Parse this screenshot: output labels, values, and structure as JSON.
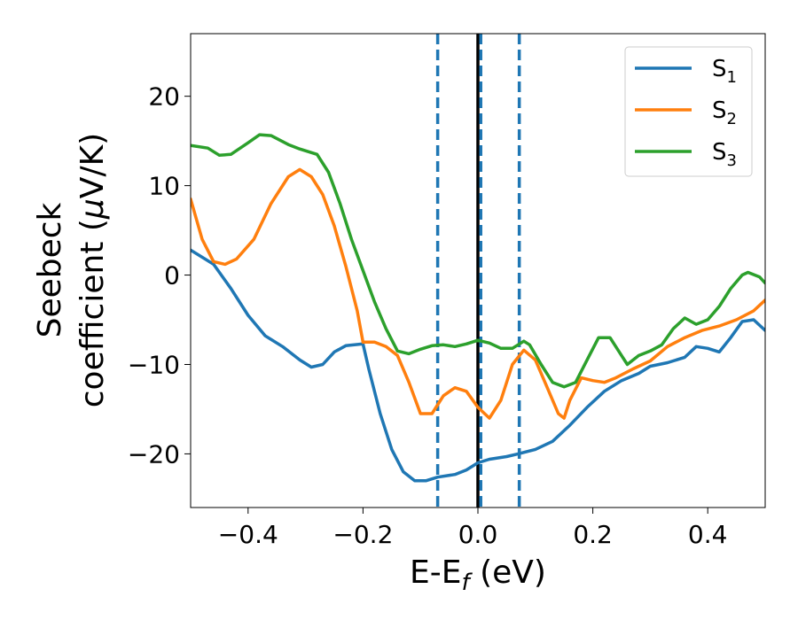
{
  "chart_data": {
    "type": "line",
    "xlabel": {
      "main": "E-E",
      "sub": "f",
      "suffix": " (eV)"
    },
    "ylabel": {
      "line1": "Seebeck",
      "line2_prefix": "coefficient  (",
      "mu": "μ",
      "line2_suffix": "V/K)"
    },
    "xlim": [
      -0.5,
      0.5
    ],
    "ylim": [
      -26,
      27
    ],
    "xticks": [
      -0.4,
      -0.2,
      0.0,
      0.2,
      0.4
    ],
    "xtick_labels": [
      "−0.4",
      "−0.2",
      "0.0",
      "0.2",
      "0.4"
    ],
    "yticks": [
      -20,
      -10,
      0,
      10,
      20
    ],
    "ytick_labels": [
      "−20",
      "−10",
      "0",
      "10",
      "20"
    ],
    "grid": false,
    "legend_position": "top-right",
    "vertical_lines": [
      {
        "x": 0.0,
        "style": "solid",
        "color": "#000000"
      },
      {
        "x": -0.07,
        "style": "dashed",
        "color": "#1f77b4"
      },
      {
        "x": 0.005,
        "style": "dashed",
        "color": "#1f77b4"
      },
      {
        "x": 0.072,
        "style": "dashed",
        "color": "#1f77b4"
      }
    ],
    "series": [
      {
        "name": "S",
        "sub": "1",
        "color": "#1f77b4",
        "points": [
          [
            -0.5,
            2.8
          ],
          [
            -0.46,
            1.2
          ],
          [
            -0.43,
            -1.5
          ],
          [
            -0.4,
            -4.5
          ],
          [
            -0.37,
            -6.8
          ],
          [
            -0.34,
            -8.0
          ],
          [
            -0.31,
            -9.5
          ],
          [
            -0.29,
            -10.3
          ],
          [
            -0.27,
            -10.0
          ],
          [
            -0.25,
            -8.6
          ],
          [
            -0.23,
            -7.9
          ],
          [
            -0.2,
            -7.7
          ],
          [
            -0.19,
            -10.5
          ],
          [
            -0.17,
            -15.5
          ],
          [
            -0.15,
            -19.5
          ],
          [
            -0.13,
            -22.0
          ],
          [
            -0.11,
            -23.0
          ],
          [
            -0.09,
            -23.0
          ],
          [
            -0.07,
            -22.6
          ],
          [
            -0.04,
            -22.3
          ],
          [
            -0.02,
            -21.8
          ],
          [
            0.0,
            -21.0
          ],
          [
            0.02,
            -20.6
          ],
          [
            0.05,
            -20.3
          ],
          [
            0.07,
            -20.0
          ],
          [
            0.1,
            -19.5
          ],
          [
            0.13,
            -18.6
          ],
          [
            0.16,
            -16.8
          ],
          [
            0.19,
            -14.8
          ],
          [
            0.22,
            -13.0
          ],
          [
            0.25,
            -11.8
          ],
          [
            0.28,
            -11.0
          ],
          [
            0.3,
            -10.2
          ],
          [
            0.33,
            -9.8
          ],
          [
            0.36,
            -9.2
          ],
          [
            0.38,
            -8.0
          ],
          [
            0.4,
            -8.2
          ],
          [
            0.42,
            -8.6
          ],
          [
            0.44,
            -7.0
          ],
          [
            0.46,
            -5.2
          ],
          [
            0.48,
            -5.0
          ],
          [
            0.5,
            -6.2
          ]
        ]
      },
      {
        "name": "S",
        "sub": "2",
        "color": "#ff7f0e",
        "points": [
          [
            -0.5,
            8.5
          ],
          [
            -0.48,
            4.0
          ],
          [
            -0.46,
            1.5
          ],
          [
            -0.44,
            1.2
          ],
          [
            -0.42,
            1.8
          ],
          [
            -0.39,
            4.0
          ],
          [
            -0.36,
            8.0
          ],
          [
            -0.33,
            11.0
          ],
          [
            -0.31,
            11.8
          ],
          [
            -0.29,
            11.0
          ],
          [
            -0.27,
            9.0
          ],
          [
            -0.25,
            5.5
          ],
          [
            -0.23,
            1.0
          ],
          [
            -0.21,
            -4.0
          ],
          [
            -0.2,
            -7.5
          ],
          [
            -0.18,
            -7.5
          ],
          [
            -0.16,
            -8.0
          ],
          [
            -0.14,
            -9.0
          ],
          [
            -0.12,
            -12.0
          ],
          [
            -0.1,
            -15.5
          ],
          [
            -0.08,
            -15.5
          ],
          [
            -0.06,
            -13.5
          ],
          [
            -0.04,
            -12.6
          ],
          [
            -0.02,
            -13.0
          ],
          [
            0.0,
            -14.8
          ],
          [
            0.02,
            -16.0
          ],
          [
            0.04,
            -14.0
          ],
          [
            0.06,
            -10.0
          ],
          [
            0.08,
            -8.4
          ],
          [
            0.1,
            -9.5
          ],
          [
            0.12,
            -12.5
          ],
          [
            0.14,
            -15.5
          ],
          [
            0.15,
            -16.0
          ],
          [
            0.16,
            -14.0
          ],
          [
            0.18,
            -11.5
          ],
          [
            0.2,
            -11.8
          ],
          [
            0.22,
            -12.0
          ],
          [
            0.24,
            -11.5
          ],
          [
            0.27,
            -10.5
          ],
          [
            0.3,
            -9.6
          ],
          [
            0.33,
            -8.0
          ],
          [
            0.36,
            -7.0
          ],
          [
            0.39,
            -6.2
          ],
          [
            0.42,
            -5.7
          ],
          [
            0.45,
            -5.0
          ],
          [
            0.48,
            -4.0
          ],
          [
            0.5,
            -2.8
          ]
        ]
      },
      {
        "name": "S",
        "sub": "3",
        "color": "#2ca02c",
        "points": [
          [
            -0.5,
            14.5
          ],
          [
            -0.47,
            14.2
          ],
          [
            -0.45,
            13.4
          ],
          [
            -0.43,
            13.5
          ],
          [
            -0.4,
            14.8
          ],
          [
            -0.38,
            15.7
          ],
          [
            -0.36,
            15.6
          ],
          [
            -0.33,
            14.6
          ],
          [
            -0.31,
            14.1
          ],
          [
            -0.28,
            13.5
          ],
          [
            -0.26,
            11.5
          ],
          [
            -0.24,
            8.0
          ],
          [
            -0.22,
            4.0
          ],
          [
            -0.2,
            0.5
          ],
          [
            -0.18,
            -3.0
          ],
          [
            -0.16,
            -6.0
          ],
          [
            -0.14,
            -8.5
          ],
          [
            -0.12,
            -8.8
          ],
          [
            -0.1,
            -8.3
          ],
          [
            -0.08,
            -7.9
          ],
          [
            -0.06,
            -7.8
          ],
          [
            -0.04,
            -8.0
          ],
          [
            -0.02,
            -7.7
          ],
          [
            0.0,
            -7.3
          ],
          [
            0.02,
            -7.6
          ],
          [
            0.04,
            -8.2
          ],
          [
            0.06,
            -8.2
          ],
          [
            0.08,
            -7.4
          ],
          [
            0.09,
            -7.8
          ],
          [
            0.11,
            -10.0
          ],
          [
            0.13,
            -12.0
          ],
          [
            0.15,
            -12.5
          ],
          [
            0.17,
            -12.0
          ],
          [
            0.19,
            -9.5
          ],
          [
            0.21,
            -7.0
          ],
          [
            0.23,
            -7.0
          ],
          [
            0.25,
            -9.0
          ],
          [
            0.26,
            -10.0
          ],
          [
            0.28,
            -9.0
          ],
          [
            0.3,
            -8.5
          ],
          [
            0.32,
            -7.8
          ],
          [
            0.34,
            -6.0
          ],
          [
            0.36,
            -4.8
          ],
          [
            0.38,
            -5.5
          ],
          [
            0.4,
            -5.0
          ],
          [
            0.42,
            -3.5
          ],
          [
            0.44,
            -1.5
          ],
          [
            0.46,
            0.0
          ],
          [
            0.47,
            0.3
          ],
          [
            0.49,
            -0.2
          ],
          [
            0.5,
            -0.9
          ]
        ]
      }
    ]
  }
}
